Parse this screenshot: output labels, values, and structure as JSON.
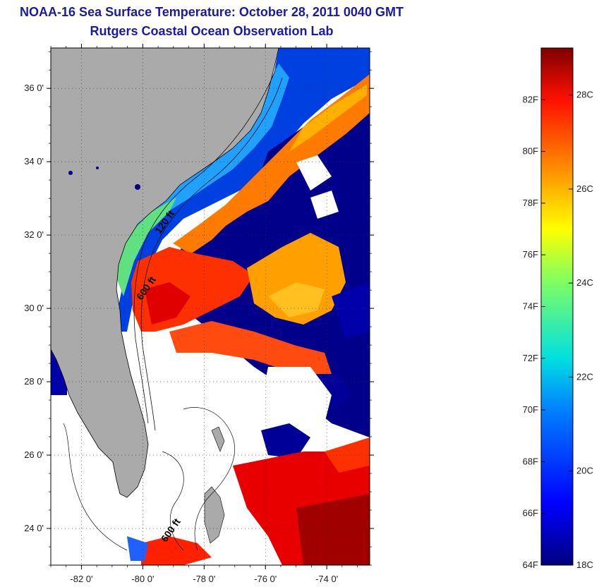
{
  "header": {
    "title": "NOAA-16 Sea Surface Temperature:  October 28, 2011 0040 GMT",
    "subtitle": "Rutgers Coastal Ocean Observation Lab"
  },
  "map": {
    "lat_range": [
      23,
      37.1
    ],
    "lon_range": [
      -83,
      -72.6
    ],
    "lat_ticks": [
      {
        "value": 24,
        "label": "24 0'"
      },
      {
        "value": 26,
        "label": "26 0'"
      },
      {
        "value": 28,
        "label": "28 0'"
      },
      {
        "value": 30,
        "label": "30 0'"
      },
      {
        "value": 32,
        "label": "32 0'"
      },
      {
        "value": 34,
        "label": "34 0'"
      },
      {
        "value": 36,
        "label": "36 0'"
      }
    ],
    "lon_ticks": [
      {
        "value": -82,
        "label": "-82 0'"
      },
      {
        "value": -80,
        "label": "-80 0'"
      },
      {
        "value": -78,
        "label": "-78 0'"
      },
      {
        "value": -76,
        "label": "-76 0'"
      },
      {
        "value": -74,
        "label": "-74 0'"
      }
    ],
    "contour_labels": [
      {
        "text": "120 ft",
        "lon": -79.2,
        "lat": 32.3
      },
      {
        "text": "600 ft",
        "lon": -79.8,
        "lat": 30.5
      },
      {
        "text": "600 ft",
        "lon": -79.0,
        "lat": 23.9
      }
    ],
    "colors": {
      "land": "#aaaaaa",
      "cloud": "#ffffff",
      "cold": "#00008b",
      "warm": "#e60000"
    }
  },
  "colorbar": {
    "range_f": [
      64,
      84
    ],
    "range_c": [
      18,
      29
    ],
    "f_ticks": [
      {
        "value": 64,
        "label": "64F"
      },
      {
        "value": 66,
        "label": "66F"
      },
      {
        "value": 68,
        "label": "68F"
      },
      {
        "value": 70,
        "label": "70F"
      },
      {
        "value": 72,
        "label": "72F"
      },
      {
        "value": 74,
        "label": "74F"
      },
      {
        "value": 76,
        "label": "76F"
      },
      {
        "value": 78,
        "label": "78F"
      },
      {
        "value": 80,
        "label": "80F"
      },
      {
        "value": 82,
        "label": "82F"
      }
    ],
    "c_ticks": [
      {
        "value": 18,
        "label": "18C"
      },
      {
        "value": 20,
        "label": "20C"
      },
      {
        "value": 22,
        "label": "22C"
      },
      {
        "value": 24,
        "label": "24C"
      },
      {
        "value": 26,
        "label": "26C"
      },
      {
        "value": 28,
        "label": "28C"
      }
    ]
  }
}
